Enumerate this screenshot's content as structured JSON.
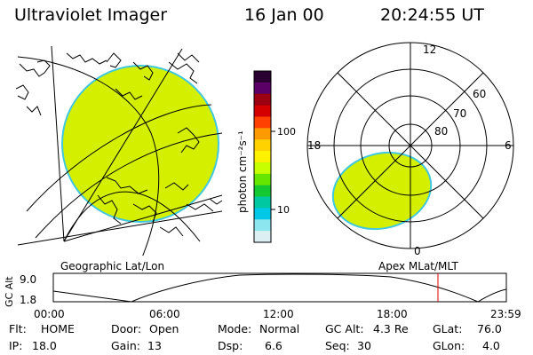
{
  "header": {
    "instrument": "Ultraviolet Imager",
    "date": "16 Jan 00",
    "time": "20:24:55 UT"
  },
  "colorbar": {
    "unit_label": "photon cm⁻²s⁻¹",
    "tick_100": "100",
    "tick_10": "10",
    "colors": [
      "#2a0033",
      "#5a0066",
      "#9a0010",
      "#d40000",
      "#ff4000",
      "#ff9a00",
      "#ffd200",
      "#fff200",
      "#c8ff00",
      "#64e600",
      "#14c832",
      "#00c8a0",
      "#00c8e6",
      "#8ce6f0",
      "#dcf0f4"
    ]
  },
  "geo_panel": {
    "label": "Geographic Lat/Lon",
    "oval_color": "#d4f000",
    "coast_color": "#000000"
  },
  "mag_panel": {
    "label": "Apex MLat/MLT",
    "mlt_top": "12",
    "mlt_left": "18",
    "mlt_right": "6",
    "mlt_bottom": "0",
    "lat_60": "60",
    "lat_70": "70",
    "lat_80": "80",
    "oval_color": "#d4f000"
  },
  "altitude_plot": {
    "ylabel": "GC Alt",
    "ymax_label": "9.0",
    "ymin_label": "1.8",
    "xticks": [
      "00:00",
      "06:00",
      "12:00",
      "18:00",
      "23:59"
    ],
    "marker_color": "#e00000"
  },
  "footer": {
    "row1": [
      {
        "key": "Flt:",
        "value": "HOME"
      },
      {
        "key": "Door:",
        "value": "Open"
      },
      {
        "key": "Mode:",
        "value": "Normal"
      },
      {
        "key": "GC Alt:",
        "value": "4.3 Re"
      },
      {
        "key": "GLat:",
        "value": "76.0"
      }
    ],
    "row2": [
      {
        "key": "IP:",
        "value": "18.0"
      },
      {
        "key": "Gain:",
        "value": "13"
      },
      {
        "key": "Dsp:",
        "value": "6.6"
      },
      {
        "key": "Seq:",
        "value": "30"
      },
      {
        "key": "GLon:",
        "value": "4.0"
      }
    ]
  }
}
